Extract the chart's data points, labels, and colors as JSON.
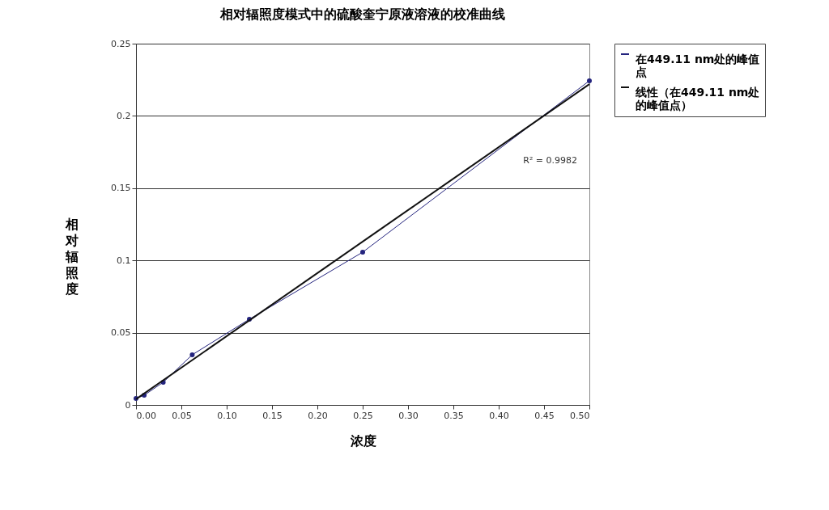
{
  "chart_data": {
    "type": "line",
    "title": "相对辐照度模式中的硫酸奎宁原液溶液的校准曲线",
    "xlabel": "浓度",
    "ylabel": "相对辐照度",
    "xlim": [
      0,
      0.5
    ],
    "ylim": [
      0,
      0.25
    ],
    "xticks": [
      {
        "value": 0,
        "label": "0.00"
      },
      {
        "value": 0.05,
        "label": "0.05"
      },
      {
        "value": 0.1,
        "label": "0.10"
      },
      {
        "value": 0.15,
        "label": "0.15"
      },
      {
        "value": 0.2,
        "label": "0.20"
      },
      {
        "value": 0.25,
        "label": "0.25"
      },
      {
        "value": 0.3,
        "label": "0.30"
      },
      {
        "value": 0.35,
        "label": "0.35"
      },
      {
        "value": 0.4,
        "label": "0.40"
      },
      {
        "value": 0.45,
        "label": "0.45"
      },
      {
        "value": 0.5,
        "label": "0.50"
      }
    ],
    "yticks": [
      0,
      0.05,
      0.1,
      0.15,
      0.2,
      0.25
    ],
    "grid": "y",
    "legend": "right",
    "annotations": [
      "R² = 0.9982"
    ],
    "series": [
      {
        "name": "在449.11 nm处的峰值点",
        "color": "#24247e",
        "marker": "circle",
        "x": [
          0,
          0.009,
          0.03,
          0.062,
          0.125,
          0.25,
          0.5
        ],
        "values": [
          0.0045,
          0.0067,
          0.0157,
          0.0347,
          0.0593,
          0.1057,
          0.2243
        ]
      },
      {
        "name": "线性（在449.11 nm处的峰值点）",
        "type": "line",
        "color": "#111111",
        "x": [
          0,
          0.5
        ],
        "values": [
          0.004,
          0.222
        ]
      }
    ]
  }
}
